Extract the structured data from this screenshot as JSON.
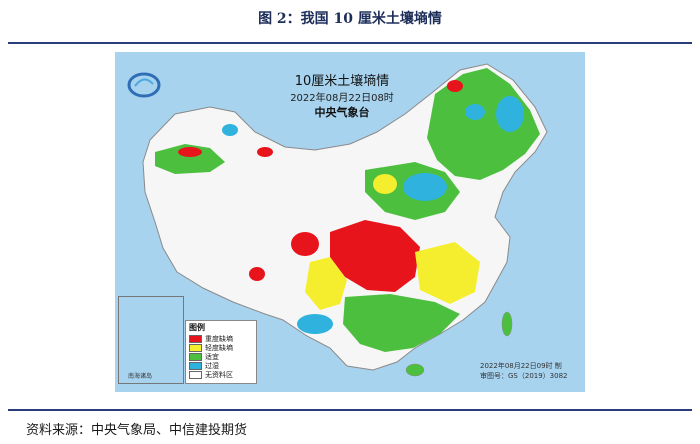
{
  "figure": {
    "caption": "图 2：我国 10 厘米土壤墒情",
    "source": "资料来源：中央气象局、中信建投期货"
  },
  "map": {
    "title": "10厘米土壤墒情",
    "datetime": "2022年08月22日08时",
    "agency": "中央气象台",
    "issue_date": "2022年08月22日09时 制",
    "review_no": "审图号：GS（2019）3082",
    "inset_label": "南海诸岛",
    "legend": {
      "title": "图例",
      "items": [
        {
          "label": "重度缺墒",
          "color": "#e8141b"
        },
        {
          "label": "轻度缺墒",
          "color": "#f5ee2e"
        },
        {
          "label": "适宜",
          "color": "#4dbf3f"
        },
        {
          "label": "过湿",
          "color": "#2fb3de"
        },
        {
          "label": "无资料区",
          "color": "#ffffff"
        }
      ]
    },
    "colors": {
      "ocean": "#a7d3ef",
      "no_data": "#f6f6f6",
      "border": "#8a8a8a"
    }
  }
}
